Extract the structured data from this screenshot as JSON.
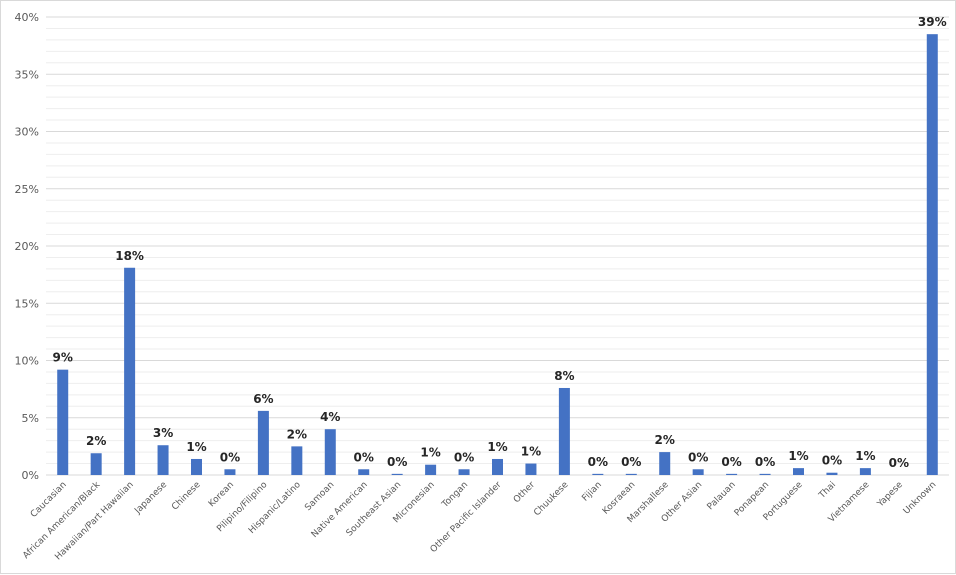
{
  "chart_data": {
    "type": "bar",
    "title": "",
    "xlabel": "",
    "ylabel": "",
    "ylim": [
      0,
      40
    ],
    "y_ticks": [
      "0%",
      "5%",
      "10%",
      "15%",
      "20%",
      "25%",
      "30%",
      "35%",
      "40%"
    ],
    "y_tick_values": [
      0,
      5,
      10,
      15,
      20,
      25,
      30,
      35,
      40
    ],
    "grid": "major and minor horizontal",
    "legend": "none",
    "bar_color": "#4472c4",
    "categories": [
      "Caucasian",
      "African American/Black",
      "Hawaiian/Part Hawaiian",
      "Japanese",
      "Chinese",
      "Korean",
      "Pilipino/Filipino",
      "Hispanic/Latino",
      "Samoan",
      "Native American",
      "Southeast Asian",
      "Micronesian",
      "Tongan",
      "Other Pacific Islander",
      "Other",
      "Chuukese",
      "Fijian",
      "Kosraean",
      "Marshallese",
      "Other Asian",
      "Palauan",
      "Ponapean",
      "Portuguese",
      "Thai",
      "Vietnamese",
      "Yapese",
      "Unknown"
    ],
    "values": [
      9.2,
      1.9,
      18.1,
      2.6,
      1.4,
      0.5,
      5.6,
      2.5,
      4.0,
      0.5,
      0.1,
      0.9,
      0.5,
      1.4,
      1.0,
      7.6,
      0.1,
      0.1,
      2.0,
      0.5,
      0.1,
      0.1,
      0.6,
      0.2,
      0.6,
      0.0,
      38.5
    ],
    "data_labels": [
      "9%",
      "2%",
      "18%",
      "3%",
      "1%",
      "0%",
      "6%",
      "2%",
      "4%",
      "0%",
      "0%",
      "1%",
      "0%",
      "1%",
      "1%",
      "8%",
      "0%",
      "0%",
      "2%",
      "0%",
      "0%",
      "0%",
      "1%",
      "0%",
      "1%",
      "0%",
      "39%"
    ]
  }
}
